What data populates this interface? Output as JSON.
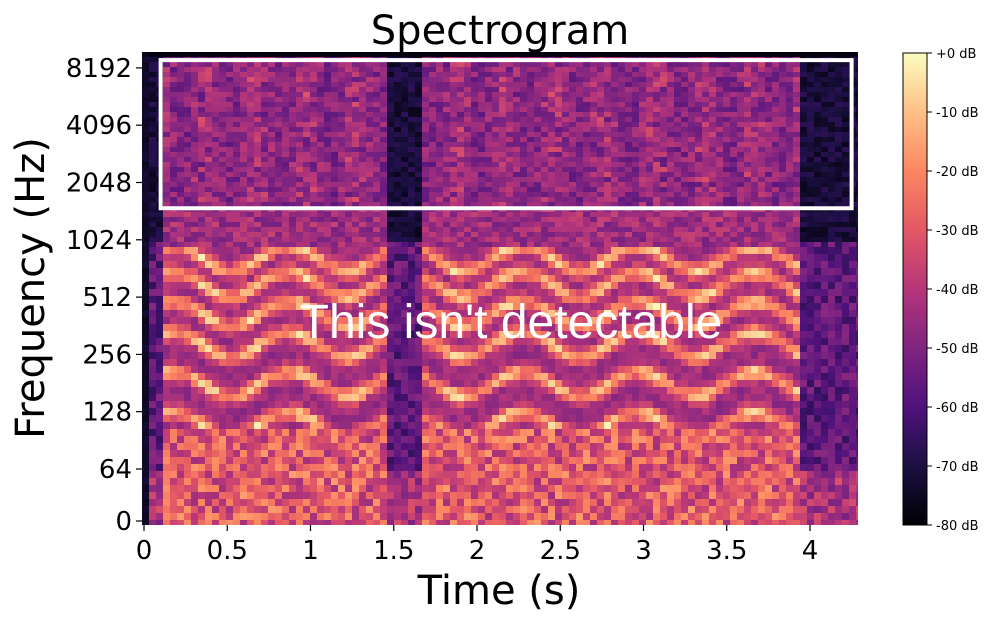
{
  "chart_data": {
    "type": "heatmap",
    "title": "Spectrogram",
    "xlabel": "Time (s)",
    "ylabel": "Frequency (Hz)",
    "x_ticks": [
      "0",
      "0.5",
      "1",
      "1.5",
      "2",
      "2.5",
      "3",
      "3.5",
      "4"
    ],
    "x_tick_values": [
      0,
      0.5,
      1,
      1.5,
      2,
      2.5,
      3,
      3.5,
      4
    ],
    "xlim": [
      0,
      4.3
    ],
    "y_ticks": [
      "0",
      "64",
      "128",
      "256",
      "512",
      "1024",
      "2048",
      "4096",
      "8192"
    ],
    "y_tick_values": [
      0,
      64,
      128,
      256,
      512,
      1024,
      2048,
      4096,
      8192
    ],
    "y_scale": "symlog",
    "ylim": [
      0,
      11025
    ],
    "colormap": "magma",
    "colorbar": {
      "ticks": [
        "+0 dB",
        "-10 dB",
        "-20 dB",
        "-30 dB",
        "-40 dB",
        "-50 dB",
        "-60 dB",
        "-70 dB",
        "-80 dB"
      ],
      "range_db": [
        -80,
        0
      ]
    },
    "annotation_box": {
      "t0": 0.1,
      "t1": 4.25,
      "f0": 1500,
      "f1": 9000,
      "color": "#ffffff"
    },
    "annotation_text": "This isn't detectable",
    "speech_segments": [
      [
        0.1,
        1.45
      ],
      [
        1.68,
        3.95
      ]
    ],
    "harmonic_bands_hz": [
      110,
      180,
      290,
      420,
      600,
      820
    ],
    "colors": {
      "box": "#ffffff",
      "background": "#ffffff",
      "text": "#000000"
    }
  }
}
